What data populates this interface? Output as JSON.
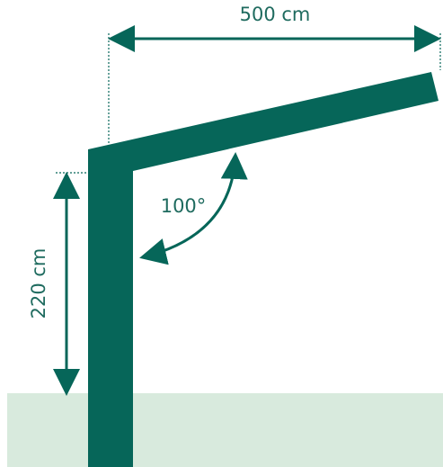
{
  "diagram": {
    "width_label": "500 cm",
    "height_label": "220 cm",
    "angle_label": "100°"
  },
  "colors": {
    "structure": "#066659",
    "dimension": "#066659",
    "ground": "#d8eadd",
    "background": "#ffffff"
  }
}
